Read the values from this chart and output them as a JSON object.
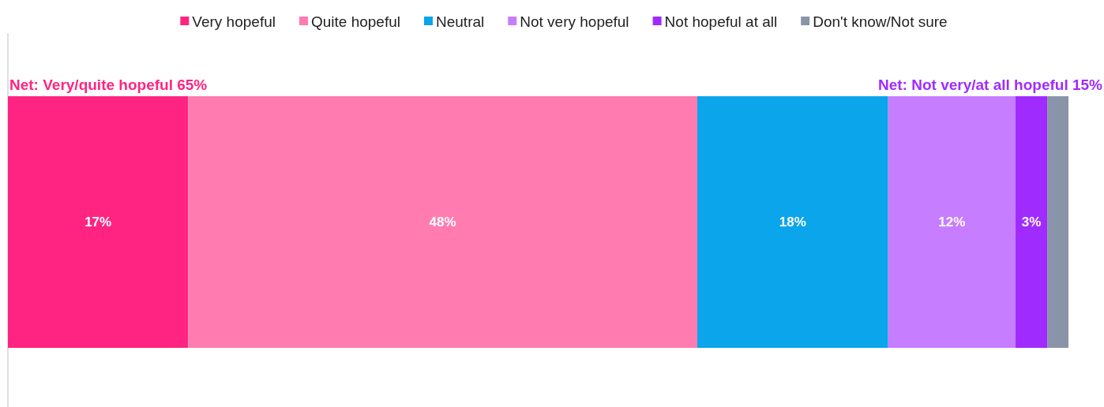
{
  "chart_data": {
    "type": "bar",
    "orientation": "horizontal",
    "stacked": true,
    "categories": [
      null
    ],
    "xlim": [
      0,
      100
    ],
    "legend": "top",
    "series": [
      {
        "name": "Very hopeful",
        "color": "#ff2481",
        "values": [
          17
        ],
        "value_labels": [
          "17%"
        ]
      },
      {
        "name": "Quite hopeful",
        "color": "#ff7bb0",
        "values": [
          48
        ],
        "value_labels": [
          "48%"
        ]
      },
      {
        "name": "Neutral",
        "color": "#0aa5eb",
        "values": [
          18
        ],
        "value_labels": [
          "18%"
        ]
      },
      {
        "name": "Not very hopeful",
        "color": "#c77dff",
        "values": [
          12
        ],
        "value_labels": [
          "12%"
        ]
      },
      {
        "name": "Not hopeful at all",
        "color": "#a02bff",
        "values": [
          3
        ],
        "value_labels": [
          "3%"
        ]
      },
      {
        "name": "Don't know/Not sure",
        "color": "#8a94a8",
        "values": [
          2
        ],
        "value_labels": [
          null
        ]
      }
    ],
    "annotations": [
      "Net: Very/quite hopeful 65%",
      "Net: Not very/at all hopeful 15%"
    ]
  }
}
